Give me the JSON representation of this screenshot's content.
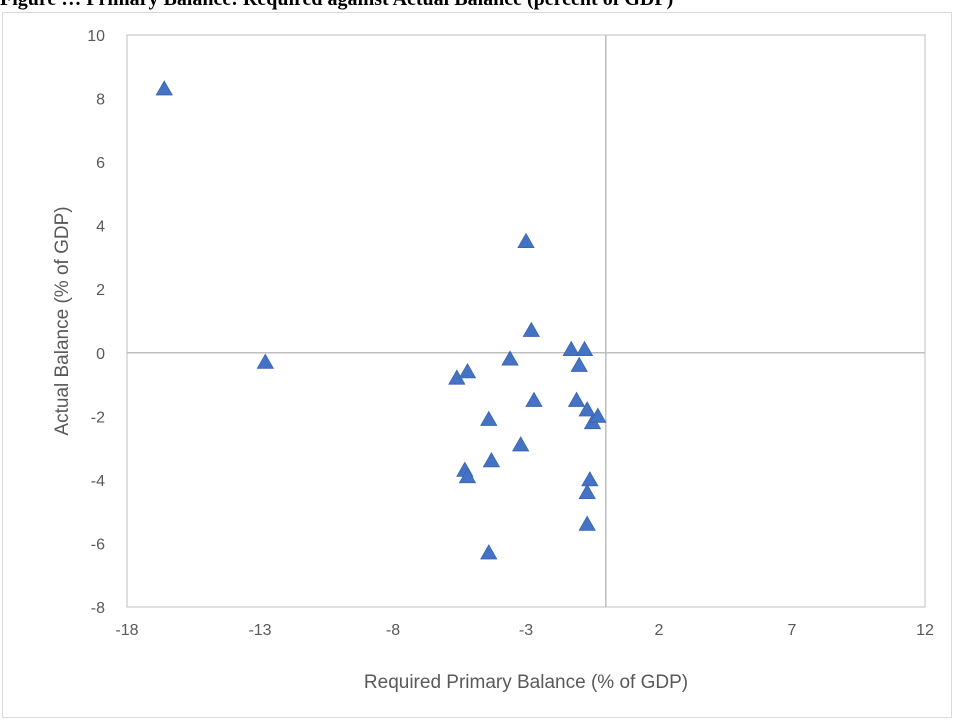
{
  "header": {
    "text": "Figure … Primary Balance: Required against Actual Balance (percent of GDP)"
  },
  "chart_data": {
    "type": "scatter",
    "title": "",
    "xlabel": "Required Primary Balance (% of GDP)",
    "ylabel": "Actual Balance (% of GDP)",
    "xlim": [
      -18,
      12
    ],
    "ylim": [
      -8,
      10
    ],
    "xticks": [
      -18,
      -13,
      -8,
      -3,
      2,
      7,
      12
    ],
    "yticks": [
      -8,
      -6,
      -4,
      -2,
      0,
      2,
      4,
      6,
      8,
      10
    ],
    "grid": false,
    "legend": "none",
    "marker": "triangle",
    "color": "#4472c4",
    "x": [
      -16.6,
      -12.8,
      -5.6,
      -5.2,
      -5.3,
      -5.2,
      -4.4,
      -4.3,
      -4.4,
      -3.6,
      -3.2,
      -3.0,
      -2.8,
      -2.7,
      -1.3,
      -1.1,
      -1.0,
      -0.8,
      -0.7,
      -0.6,
      -0.7,
      -0.7,
      -0.5,
      -0.3
    ],
    "y": [
      8.3,
      -0.3,
      -0.8,
      -0.6,
      -3.7,
      -3.9,
      -2.1,
      -3.4,
      -6.3,
      -0.2,
      -2.9,
      3.5,
      0.7,
      -1.5,
      0.1,
      -1.5,
      -0.4,
      0.1,
      -1.8,
      -4.0,
      -4.4,
      -5.4,
      -2.2,
      -2.0
    ]
  }
}
